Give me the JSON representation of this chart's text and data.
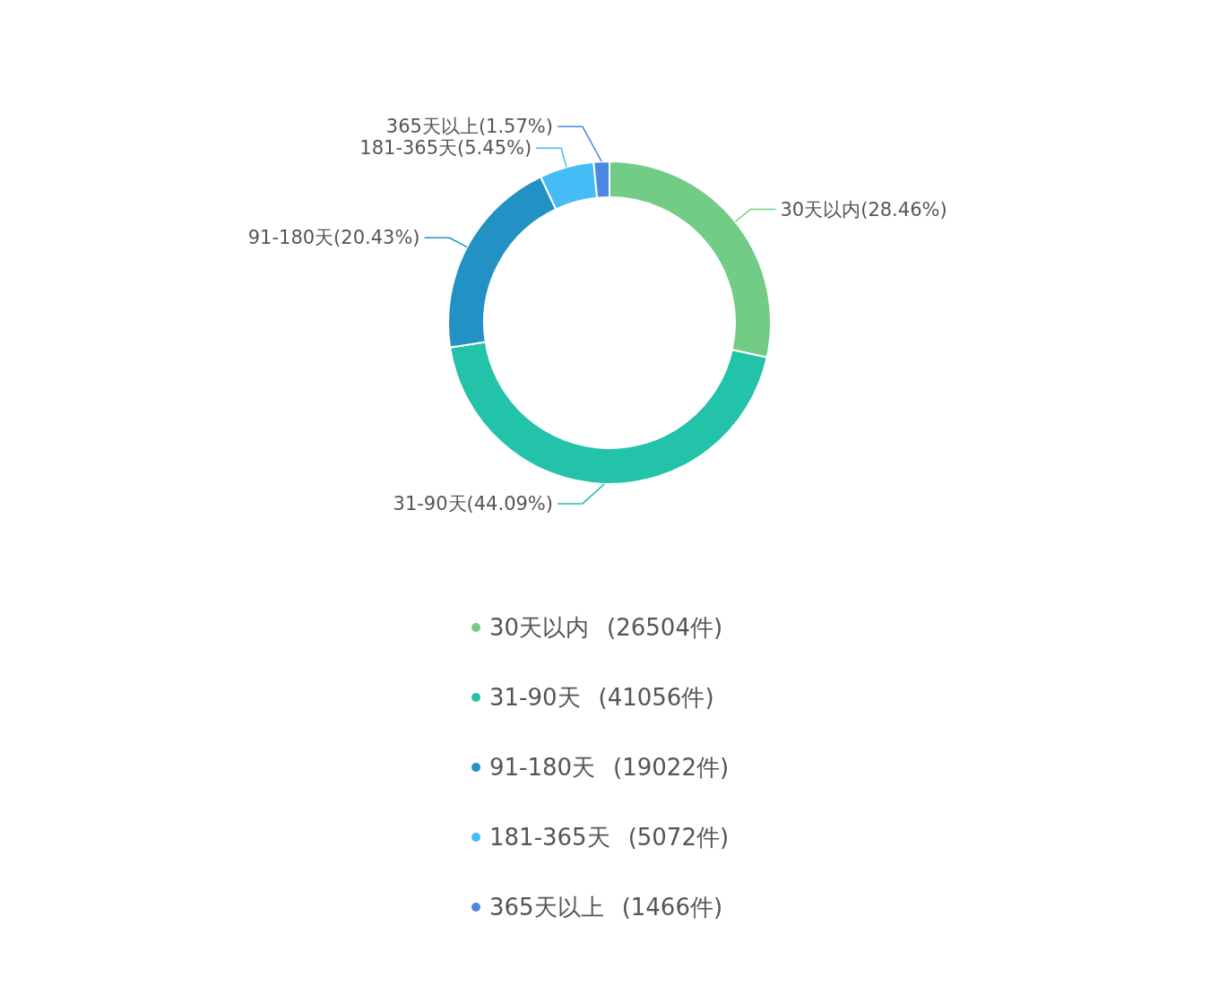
{
  "chart_data": {
    "type": "donut",
    "categories": [
      "30天以内",
      "31-90天",
      "91-180天",
      "181-365天",
      "365天以上"
    ],
    "values": [
      28.46,
      44.09,
      20.43,
      5.45,
      1.57
    ],
    "colors": [
      "#73cc85",
      "#22c3a9",
      "#2291c4",
      "#45bcf5",
      "#4c88e0"
    ],
    "value_labels": [
      "(28.46%)",
      "(44.09%)",
      "(20.43%)",
      "(5.45%)",
      "(1.57%)"
    ],
    "annotations": [
      "(26504件)",
      "(41056件)",
      "(19022件)",
      "(5072件)",
      "(1466件)"
    ],
    "legend": "bottom"
  }
}
